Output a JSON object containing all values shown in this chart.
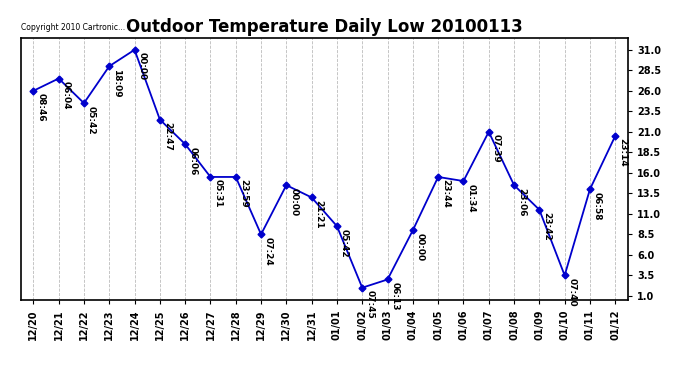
{
  "title": "Outdoor Temperature Daily Low 20100113",
  "copyright_text": "Copyright 2010 Cartronic...",
  "x_labels": [
    "12/20",
    "12/21",
    "12/22",
    "12/23",
    "12/24",
    "12/25",
    "12/26",
    "12/27",
    "12/28",
    "12/29",
    "12/30",
    "12/31",
    "01/01",
    "01/02",
    "01/03",
    "01/04",
    "01/05",
    "01/06",
    "01/07",
    "01/08",
    "01/09",
    "01/10",
    "01/11",
    "01/12"
  ],
  "time_labels": [
    "08:46",
    "06:04",
    "05:42",
    "18:09",
    "00:00",
    "22:47",
    "06:06",
    "05:31",
    "23:59",
    "07:24",
    "00:00",
    "21:21",
    "05:42",
    "07:45",
    "06:13",
    "00:00",
    "23:44",
    "01:34",
    "07:39",
    "23:06",
    "23:42",
    "07:40",
    "06:58",
    "23:14"
  ],
  "y_values": [
    26.0,
    27.5,
    24.5,
    29.0,
    31.0,
    22.5,
    19.5,
    15.5,
    15.5,
    8.5,
    14.5,
    13.0,
    9.5,
    2.0,
    3.0,
    9.0,
    15.5,
    15.0,
    21.0,
    14.5,
    11.5,
    3.5,
    14.0,
    20.5
  ],
  "y_right_ticks": [
    1.0,
    3.5,
    6.0,
    8.5,
    11.0,
    13.5,
    16.0,
    18.5,
    21.0,
    23.5,
    26.0,
    28.5,
    31.0
  ],
  "ylim": [
    0.5,
    32.5
  ],
  "xlim": [
    -0.5,
    23.5
  ],
  "line_color": "#0000cc",
  "marker_color": "#0000cc",
  "bg_color": "#ffffff",
  "grid_color": "#bbbbbb",
  "title_fontsize": 12,
  "tick_fontsize": 7,
  "annot_fontsize": 6.5
}
